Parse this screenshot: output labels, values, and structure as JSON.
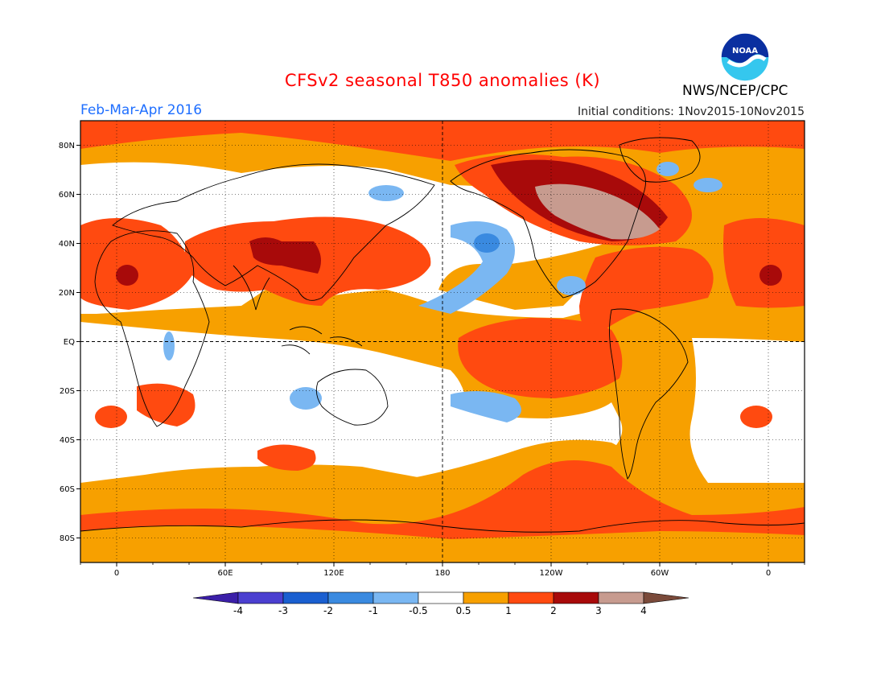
{
  "header": {
    "title": "CFSv2 seasonal T850 anomalies (K)",
    "period": "Feb-Mar-Apr 2016",
    "initial_conditions": "Initial conditions: 1Nov2015-10Nov2015",
    "agency": "NWS/NCEP/CPC",
    "logo_text": "NOAA"
  },
  "map": {
    "projection": "cylindrical equidistant",
    "lon_range": [
      -20,
      380
    ],
    "lat_range": [
      -90,
      90
    ],
    "lat_ticks": [
      {
        "lat": 80,
        "label": "80N"
      },
      {
        "lat": 60,
        "label": "60N"
      },
      {
        "lat": 40,
        "label": "40N"
      },
      {
        "lat": 20,
        "label": "20N"
      },
      {
        "lat": 0,
        "label": "EQ"
      },
      {
        "lat": -20,
        "label": "20S"
      },
      {
        "lat": -40,
        "label": "40S"
      },
      {
        "lat": -60,
        "label": "60S"
      },
      {
        "lat": -80,
        "label": "80S"
      }
    ],
    "lon_ticks": [
      {
        "lon": 0,
        "label": "0"
      },
      {
        "lon": 60,
        "label": "60E"
      },
      {
        "lon": 120,
        "label": "120E"
      },
      {
        "lon": 180,
        "label": "180"
      },
      {
        "lon": 240,
        "label": "120W"
      },
      {
        "lon": 300,
        "label": "60W"
      },
      {
        "lon": 360,
        "label": "0"
      }
    ]
  },
  "colorbar": {
    "labels": [
      "-4",
      "-3",
      "-2",
      "-1",
      "-0.5",
      "0.5",
      "1",
      "2",
      "3",
      "4"
    ],
    "colors": [
      "#3b1fa8",
      "#4b3fd0",
      "#1a5fd0",
      "#3a8ae0",
      "#7ab7f2",
      "#ffffff",
      "#f7a000",
      "#ff4a10",
      "#a80a0a",
      "#c79b8f",
      "#7a4a3a"
    ]
  }
}
